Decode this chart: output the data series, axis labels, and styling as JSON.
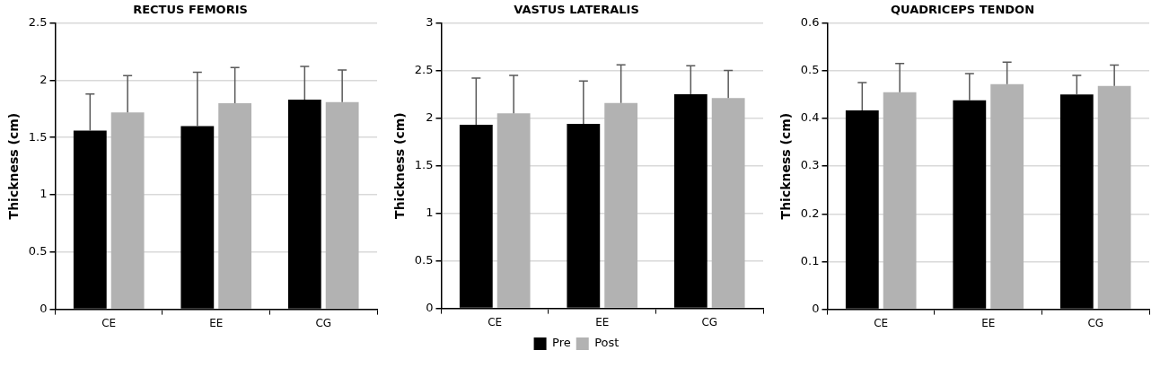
{
  "chart_data": [
    {
      "type": "bar",
      "title": "RECTUS FEMORIS",
      "ylabel": "Thickness (cm)",
      "categories": [
        "CE",
        "EE",
        "CG"
      ],
      "ylim": [
        0,
        2.5
      ],
      "yticks": [
        0,
        0.5,
        1,
        1.5,
        2,
        2.5
      ],
      "grid": "y",
      "legend": false,
      "series": [
        {
          "color": "#000000",
          "values": [
            1.56,
            1.6,
            1.83
          ],
          "errors": [
            [
              1.56,
              1.88
            ],
            [
              1.6,
              2.07
            ],
            [
              1.83,
              2.12
            ]
          ]
        },
        {
          "color": "#b2b2b2",
          "values": [
            1.72,
            1.8,
            1.81
          ],
          "errors": [
            [
              1.72,
              2.04
            ],
            [
              1.8,
              2.11
            ],
            [
              1.81,
              2.09
            ]
          ]
        }
      ]
    },
    {
      "type": "bar",
      "title": "VASTUS LATERALIS",
      "ylabel": "Thickness (cm)",
      "categories": [
        "CE",
        "EE",
        "CG"
      ],
      "ylim": [
        0,
        3
      ],
      "yticks": [
        0,
        0.5,
        1,
        1.5,
        2,
        2.5,
        3
      ],
      "grid": "y",
      "legend": "bottom",
      "series": [
        {
          "name": "Pre",
          "color": "#000000",
          "values": [
            1.93,
            1.94,
            2.25
          ],
          "errors": [
            [
              1.93,
              2.42
            ],
            [
              1.94,
              2.39
            ],
            [
              2.25,
              2.55
            ]
          ]
        },
        {
          "name": "Post",
          "color": "#b2b2b2",
          "values": [
            2.05,
            2.16,
            2.21
          ],
          "errors": [
            [
              2.05,
              2.45
            ],
            [
              2.16,
              2.56
            ],
            [
              2.21,
              2.5
            ]
          ]
        }
      ]
    },
    {
      "type": "bar",
      "title": "QUADRICEPS TENDON",
      "ylabel": "Thickness (cm)",
      "categories": [
        "CE",
        "EE",
        "CG"
      ],
      "ylim": [
        0,
        0.6
      ],
      "yticks": [
        0,
        0.1,
        0.2,
        0.3,
        0.4,
        0.5,
        0.6
      ],
      "grid": "y",
      "legend": false,
      "series": [
        {
          "color": "#000000",
          "values": [
            0.417,
            0.438,
            0.45
          ],
          "errors": [
            [
              0.417,
              0.475
            ],
            [
              0.438,
              0.494
            ],
            [
              0.45,
              0.49
            ]
          ]
        },
        {
          "color": "#b2b2b2",
          "values": [
            0.455,
            0.472,
            0.468
          ],
          "errors": [
            [
              0.455,
              0.515
            ],
            [
              0.472,
              0.518
            ],
            [
              0.468,
              0.512
            ]
          ]
        }
      ]
    }
  ]
}
